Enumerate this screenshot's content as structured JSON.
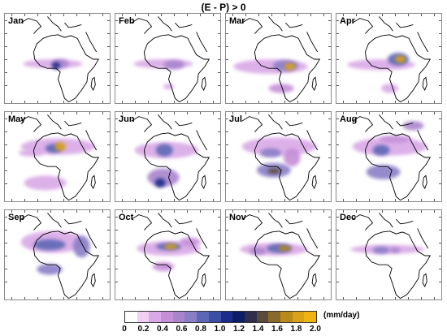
{
  "title": "(E - P) > 0",
  "panels": [
    {
      "month": "Jan",
      "blobs": [
        [
          0.45,
          0.55,
          0.28,
          0.05,
          0.25
        ],
        [
          0.52,
          0.55,
          0.08,
          0.05,
          0.55
        ],
        [
          0.48,
          0.57,
          0.04,
          0.04,
          1.0
        ]
      ]
    },
    {
      "month": "Feb",
      "blobs": [
        [
          0.45,
          0.55,
          0.28,
          0.05,
          0.25
        ],
        [
          0.55,
          0.56,
          0.1,
          0.05,
          0.5
        ],
        [
          0.5,
          0.8,
          0.05,
          0.03,
          0.2
        ]
      ]
    },
    {
      "month": "Mar",
      "blobs": [
        [
          0.42,
          0.58,
          0.35,
          0.08,
          0.3
        ],
        [
          0.56,
          0.57,
          0.12,
          0.06,
          0.7
        ],
        [
          0.6,
          0.58,
          0.05,
          0.04,
          1.8
        ],
        [
          0.52,
          0.82,
          0.12,
          0.05,
          0.35
        ]
      ]
    },
    {
      "month": "Apr",
      "blobs": [
        [
          0.42,
          0.56,
          0.32,
          0.06,
          0.3
        ],
        [
          0.58,
          0.5,
          0.1,
          0.07,
          0.8
        ],
        [
          0.6,
          0.5,
          0.05,
          0.04,
          1.8
        ],
        [
          0.5,
          0.82,
          0.08,
          0.05,
          0.3
        ]
      ]
    },
    {
      "month": "May",
      "blobs": [
        [
          0.5,
          0.38,
          0.35,
          0.09,
          0.3
        ],
        [
          0.46,
          0.4,
          0.08,
          0.05,
          0.8
        ],
        [
          0.52,
          0.38,
          0.05,
          0.05,
          1.8
        ],
        [
          0.38,
          0.78,
          0.2,
          0.08,
          0.3
        ],
        [
          0.25,
          0.45,
          0.12,
          0.04,
          0.2
        ]
      ]
    },
    {
      "month": "Jun",
      "blobs": [
        [
          0.48,
          0.42,
          0.3,
          0.09,
          0.3
        ],
        [
          0.46,
          0.42,
          0.08,
          0.07,
          0.8
        ],
        [
          0.45,
          0.72,
          0.15,
          0.1,
          0.5
        ],
        [
          0.42,
          0.78,
          0.05,
          0.05,
          1.0
        ]
      ]
    },
    {
      "month": "Jul",
      "blobs": [
        [
          0.5,
          0.38,
          0.35,
          0.1,
          0.3
        ],
        [
          0.42,
          0.45,
          0.1,
          0.05,
          0.7
        ],
        [
          0.45,
          0.64,
          0.16,
          0.08,
          0.7
        ],
        [
          0.45,
          0.65,
          0.06,
          0.03,
          1.4
        ],
        [
          0.62,
          0.5,
          0.08,
          0.1,
          0.4
        ]
      ]
    },
    {
      "month": "Aug",
      "blobs": [
        [
          0.5,
          0.38,
          0.35,
          0.1,
          0.3
        ],
        [
          0.42,
          0.42,
          0.08,
          0.06,
          0.8
        ],
        [
          0.44,
          0.66,
          0.16,
          0.08,
          0.7
        ],
        [
          0.55,
          0.3,
          0.15,
          0.04,
          0.4
        ],
        [
          0.72,
          0.15,
          0.1,
          0.05,
          0.5
        ]
      ]
    },
    {
      "month": "Sep",
      "blobs": [
        [
          0.45,
          0.35,
          0.3,
          0.12,
          0.3
        ],
        [
          0.42,
          0.38,
          0.15,
          0.06,
          0.8
        ],
        [
          0.72,
          0.4,
          0.08,
          0.12,
          0.6
        ],
        [
          0.42,
          0.65,
          0.12,
          0.06,
          0.6
        ]
      ]
    },
    {
      "month": "Oct",
      "blobs": [
        [
          0.5,
          0.42,
          0.3,
          0.08,
          0.3
        ],
        [
          0.5,
          0.4,
          0.12,
          0.04,
          0.8
        ],
        [
          0.52,
          0.4,
          0.06,
          0.03,
          1.8
        ],
        [
          0.45,
          0.62,
          0.1,
          0.05,
          0.4
        ],
        [
          0.7,
          0.35,
          0.1,
          0.05,
          0.4
        ]
      ]
    },
    {
      "month": "Nov",
      "blobs": [
        [
          0.45,
          0.43,
          0.32,
          0.07,
          0.3
        ],
        [
          0.5,
          0.42,
          0.12,
          0.05,
          0.8
        ],
        [
          0.55,
          0.42,
          0.06,
          0.03,
          1.7
        ],
        [
          0.3,
          0.45,
          0.08,
          0.04,
          0.5
        ]
      ]
    },
    {
      "month": "Dec",
      "blobs": [
        [
          0.48,
          0.43,
          0.35,
          0.05,
          0.3
        ],
        [
          0.42,
          0.44,
          0.08,
          0.04,
          0.6
        ],
        [
          0.55,
          0.44,
          0.05,
          0.03,
          0.5
        ]
      ]
    }
  ],
  "colorbar": {
    "colors": [
      "#ffffff",
      "#efd0f2",
      "#d9a8e6",
      "#c58ed8",
      "#a884cc",
      "#8a7ec6",
      "#5d67b6",
      "#3d4ea6",
      "#1c2c8a",
      "#0d1c66",
      "#302e4c",
      "#5a4a3a",
      "#8a6a2a",
      "#b88a1a",
      "#d9a218",
      "#f0b412"
    ],
    "ticks": [
      "0",
      "0.2",
      "0.4",
      "0.6",
      "0.8",
      "1.0",
      "1.2",
      "1.4",
      "1.6",
      "1.8",
      "2.0"
    ],
    "unit": "(mm/day)"
  }
}
